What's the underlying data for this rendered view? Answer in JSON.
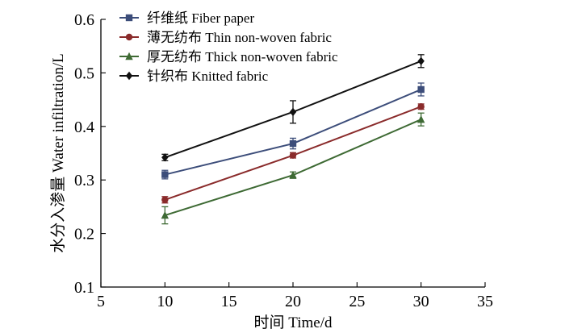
{
  "chart_data": {
    "type": "line",
    "xlabel": "时间 Time/d",
    "ylabel": "水分入渗量 Water infiltration/L",
    "xlim": [
      5,
      35
    ],
    "ylim": [
      0.1,
      0.6
    ],
    "xticks": [
      5,
      10,
      15,
      20,
      25,
      30,
      35
    ],
    "yticks": [
      0.1,
      0.2,
      0.3,
      0.4,
      0.5,
      0.6
    ],
    "grid": false,
    "legend_position": "top-left",
    "x": [
      10,
      20,
      30
    ],
    "series": [
      {
        "name": "纤维纸 Fiber paper",
        "marker": "square",
        "color": "#3c4d7a",
        "values": [
          0.31,
          0.368,
          0.469
        ],
        "errors": [
          0.008,
          0.01,
          0.012
        ]
      },
      {
        "name": "薄无纺布 Thin non-woven fabric",
        "marker": "circle",
        "color": "#8a2b2b",
        "values": [
          0.263,
          0.346,
          0.437
        ],
        "errors": [
          0.006,
          0.005,
          0.005
        ]
      },
      {
        "name": "厚无纺布 Thick non-woven fabric",
        "marker": "triangle",
        "color": "#3e6a34",
        "values": [
          0.234,
          0.309,
          0.413
        ],
        "errors": [
          0.016,
          0.006,
          0.012
        ]
      },
      {
        "name": "针织布 Knitted fabric",
        "marker": "diamond",
        "color": "#111111",
        "values": [
          0.342,
          0.427,
          0.522
        ],
        "errors": [
          0.006,
          0.021,
          0.012
        ]
      }
    ]
  }
}
